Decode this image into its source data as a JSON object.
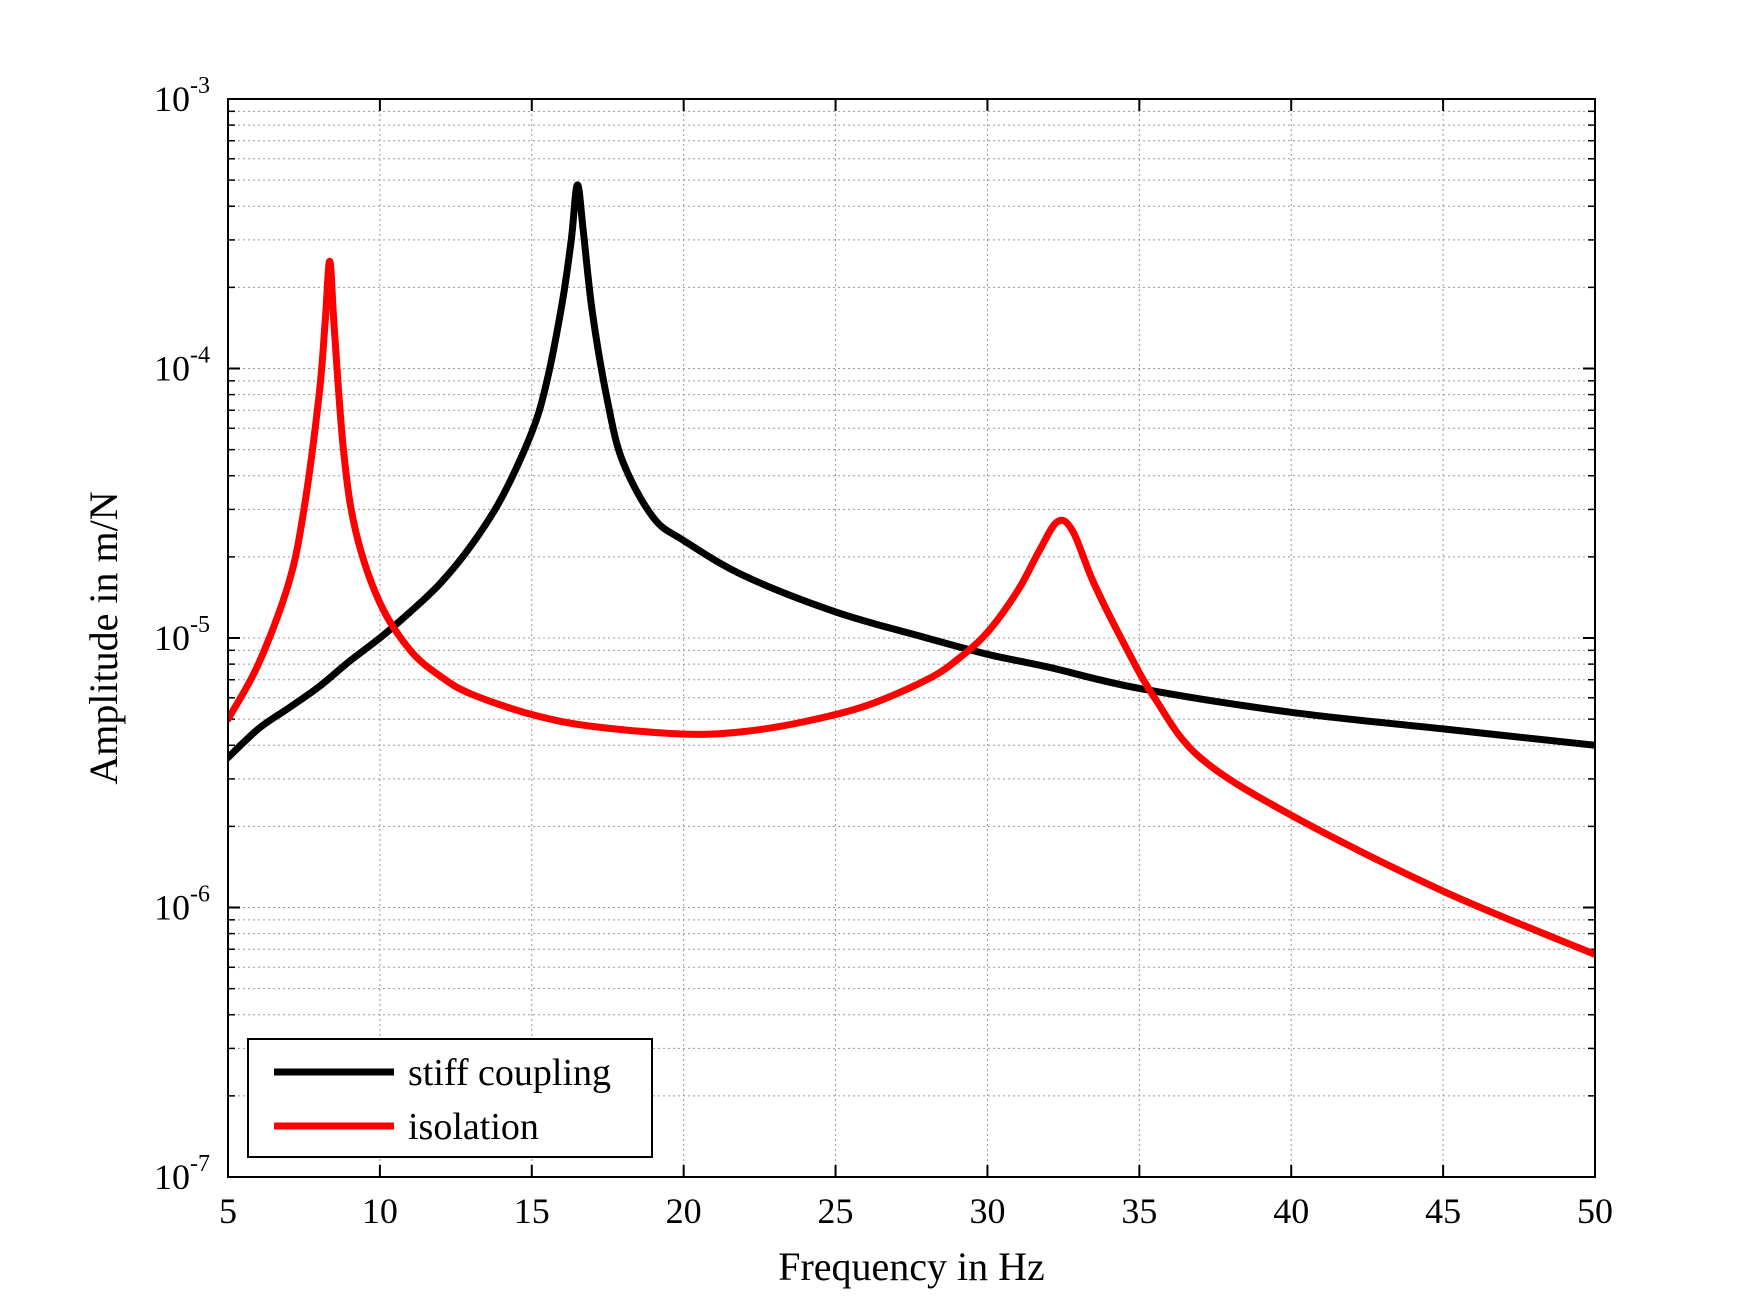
{
  "chart_data": {
    "type": "line",
    "title": "",
    "xlabel": "Frequency in Hz",
    "ylabel": "Amplitude in m/N",
    "xlim": [
      5,
      50
    ],
    "ylim": [
      1e-07,
      0.001
    ],
    "yscale": "log",
    "grid": true,
    "legend_position": "bottom-left",
    "x_ticks": [
      "5",
      "10",
      "15",
      "20",
      "25",
      "30",
      "35",
      "40",
      "45",
      "50"
    ],
    "y_ticks": [
      {
        "value": 1e-07,
        "base": "10",
        "exp": "-7"
      },
      {
        "value": 1e-06,
        "base": "10",
        "exp": "-6"
      },
      {
        "value": 1e-05,
        "base": "10",
        "exp": "-5"
      },
      {
        "value": 0.0001,
        "base": "10",
        "exp": "-4"
      },
      {
        "value": 0.001,
        "base": "10",
        "exp": "-3"
      }
    ],
    "series": [
      {
        "name": "stiff coupling",
        "color": "#000000",
        "x": [
          5,
          6,
          7,
          8,
          9,
          10,
          11,
          12,
          13,
          14,
          15,
          15.5,
          16,
          16.3,
          16.5,
          16.7,
          17,
          17.5,
          18,
          19,
          20,
          22,
          25,
          28,
          30,
          32,
          35,
          40,
          45,
          50
        ],
        "y": [
          3.6e-06,
          4.6e-06,
          5.5e-06,
          6.6e-06,
          8.2e-06,
          1e-05,
          1.25e-05,
          1.6e-05,
          2.2e-05,
          3.3e-05,
          5.8e-05,
          9e-05,
          0.000175,
          0.0003,
          0.00048,
          0.00032,
          0.00016,
          7.5e-05,
          4.5e-05,
          2.8e-05,
          2.3e-05,
          1.7e-05,
          1.25e-05,
          1e-05,
          8.7e-06,
          7.8e-06,
          6.5e-06,
          5.3e-06,
          4.6e-06,
          4e-06
        ]
      },
      {
        "name": "isolation",
        "color": "#ff0000",
        "x": [
          5,
          6,
          7,
          7.5,
          8,
          8.2,
          8.35,
          8.5,
          8.8,
          9.2,
          10,
          11,
          12,
          13,
          15,
          17,
          20,
          22,
          24,
          26,
          28,
          29,
          30,
          31,
          31.7,
          32.3,
          32.8,
          33.5,
          34.5,
          35.5,
          37,
          40,
          45,
          50
        ],
        "y": [
          5e-06,
          8e-06,
          1.6e-05,
          3e-05,
          8e-05,
          0.00015,
          0.00025,
          0.00014,
          5e-05,
          2.5e-05,
          1.35e-05,
          9e-06,
          7.2e-06,
          6.2e-06,
          5.2e-06,
          4.7e-06,
          4.4e-06,
          4.5e-06,
          4.9e-06,
          5.6e-06,
          7e-06,
          8.3e-06,
          1.05e-05,
          1.5e-05,
          2.1e-05,
          2.7e-05,
          2.5e-05,
          1.6e-05,
          9.5e-06,
          6e-06,
          3.6e-06,
          2.2e-06,
          1.15e-06,
          6.7e-07
        ]
      }
    ]
  }
}
